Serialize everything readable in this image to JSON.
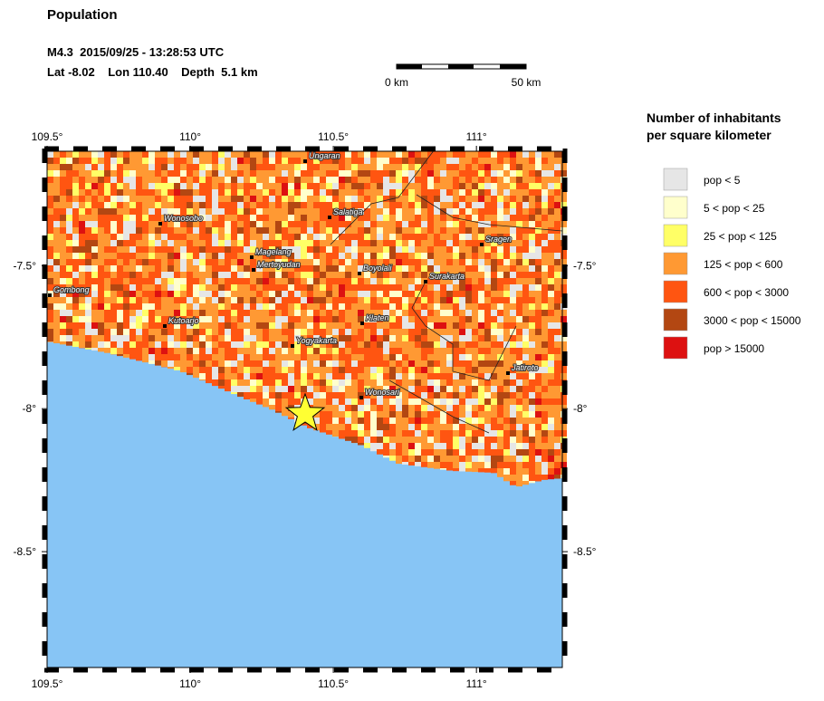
{
  "header": {
    "title": "Population",
    "event": "M4.3  2015/09/25 - 13:28:53 UTC",
    "location": "Lat -8.02    Lon 110.40    Depth  5.1 km"
  },
  "scale_bar": {
    "start": "0 km",
    "end": "50 km"
  },
  "map": {
    "xlim": [
      109.5,
      111.3
    ],
    "ylim": [
      -8.905,
      -7.1
    ],
    "xticks": [
      {
        "value": 109.5,
        "label": "109.5°"
      },
      {
        "value": 110,
        "label": "110°"
      },
      {
        "value": 110.5,
        "label": "110.5°"
      },
      {
        "value": 111,
        "label": "111°"
      }
    ],
    "yticks": [
      {
        "value": -7.5,
        "label": "-7.5°"
      },
      {
        "value": -8,
        "label": "-8°"
      },
      {
        "value": -8.5,
        "label": "-8.5°"
      }
    ],
    "cities": [
      "Ungaran",
      "Salatiga",
      "Wonosobo",
      "Magelang",
      "Mertoyudan",
      "Boyolali",
      "Sragen",
      "Surakarta",
      "Gombong",
      "Kutoarjo",
      "Klaten",
      "Yogyakarta",
      "Jatiroto",
      "Wonosari"
    ]
  },
  "legend": {
    "title": [
      "Number of inhabitants",
      "per square kilometer"
    ],
    "items": [
      {
        "label": "pop < 5",
        "color": "#e6e6e6"
      },
      {
        "label": "5 < pop < 25",
        "color": "#ffffcc"
      },
      {
        "label": "25 < pop < 125",
        "color": "#ffff66"
      },
      {
        "label": "125 < pop < 600",
        "color": "#ff9933"
      },
      {
        "label": "600 < pop < 3000",
        "color": "#ff5511"
      },
      {
        "label": "3000 < pop < 15000",
        "color": "#b34712"
      },
      {
        "label": "pop > 15000",
        "color": "#dd1111"
      }
    ]
  }
}
